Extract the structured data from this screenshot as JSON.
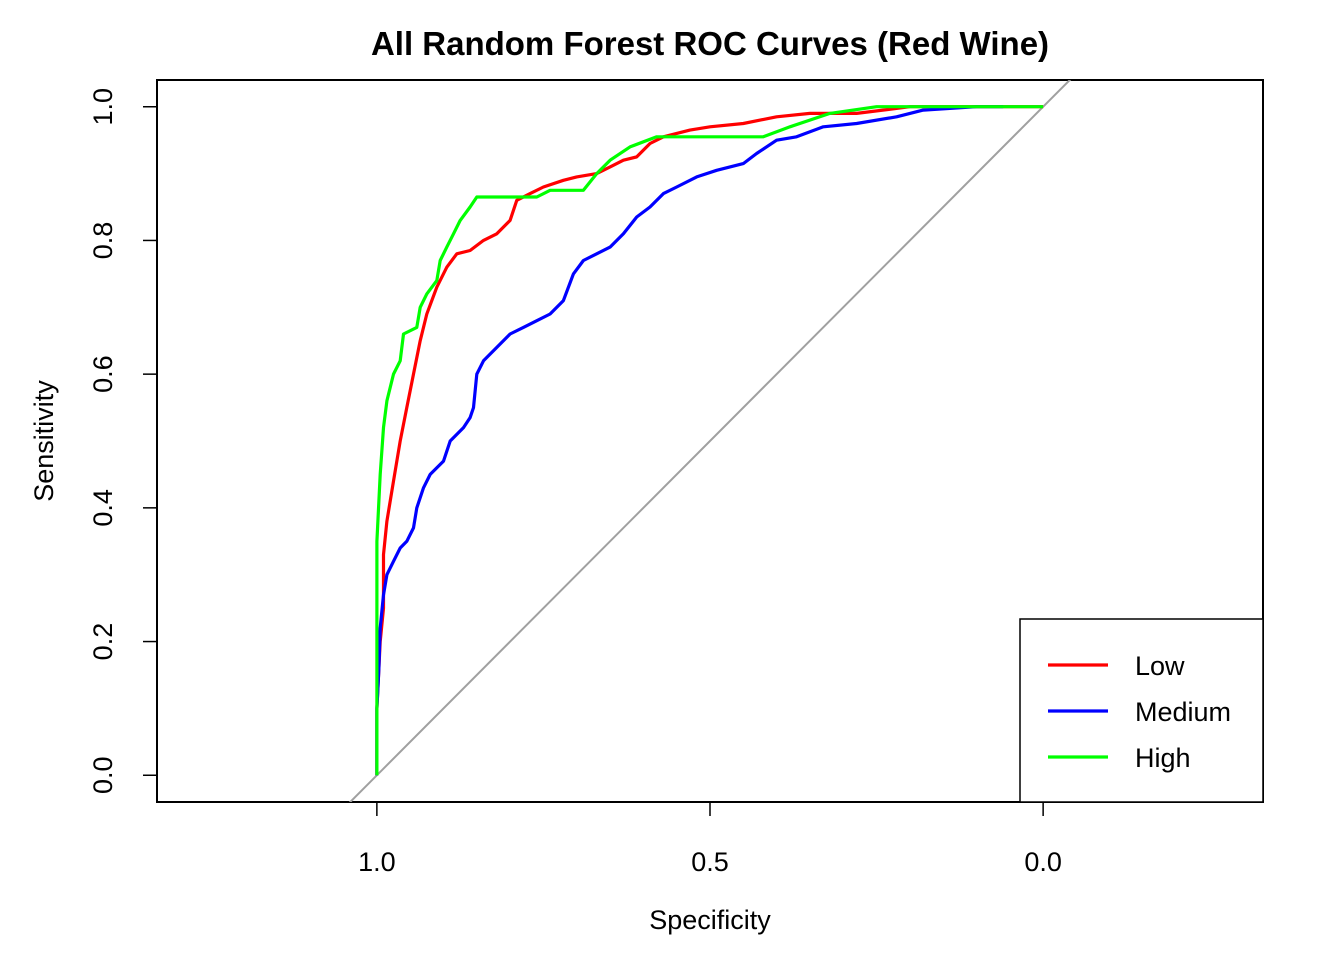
{
  "chart_data": {
    "type": "line",
    "title": "All Random Forest ROC Curves (Red Wine)",
    "xlabel": "Specificity",
    "ylabel": "Sensitivity",
    "x_reversed": true,
    "xlim": [
      1.33,
      -0.33
    ],
    "ylim": [
      -0.04,
      1.04
    ],
    "x_ticks": [
      1.0,
      0.5,
      0.0
    ],
    "x_tick_labels": [
      "1.0",
      "0.5",
      "0.0"
    ],
    "y_ticks": [
      0.0,
      0.2,
      0.4,
      0.6,
      0.8,
      1.0
    ],
    "y_tick_labels": [
      "0.0",
      "0.2",
      "0.4",
      "0.6",
      "0.8",
      "1.0"
    ],
    "grid": false,
    "legend_position": "bottom-right",
    "reference_line": {
      "color": "#a0a0a0",
      "from": [
        1.0,
        0.0
      ],
      "to": [
        0.0,
        1.0
      ]
    },
    "series": [
      {
        "name": "Low",
        "color": "#ff0000",
        "points": [
          [
            1.0,
            0.0
          ],
          [
            1.0,
            0.1
          ],
          [
            0.995,
            0.2
          ],
          [
            0.99,
            0.25
          ],
          [
            0.99,
            0.33
          ],
          [
            0.985,
            0.38
          ],
          [
            0.975,
            0.44
          ],
          [
            0.965,
            0.5
          ],
          [
            0.955,
            0.55
          ],
          [
            0.945,
            0.6
          ],
          [
            0.935,
            0.65
          ],
          [
            0.925,
            0.69
          ],
          [
            0.91,
            0.73
          ],
          [
            0.895,
            0.76
          ],
          [
            0.88,
            0.78
          ],
          [
            0.86,
            0.785
          ],
          [
            0.84,
            0.8
          ],
          [
            0.82,
            0.81
          ],
          [
            0.8,
            0.83
          ],
          [
            0.79,
            0.86
          ],
          [
            0.77,
            0.87
          ],
          [
            0.75,
            0.88
          ],
          [
            0.72,
            0.89
          ],
          [
            0.7,
            0.895
          ],
          [
            0.67,
            0.9
          ],
          [
            0.65,
            0.91
          ],
          [
            0.63,
            0.92
          ],
          [
            0.61,
            0.925
          ],
          [
            0.59,
            0.945
          ],
          [
            0.57,
            0.955
          ],
          [
            0.53,
            0.965
          ],
          [
            0.5,
            0.97
          ],
          [
            0.45,
            0.975
          ],
          [
            0.4,
            0.985
          ],
          [
            0.35,
            0.99
          ],
          [
            0.28,
            0.99
          ],
          [
            0.2,
            1.0
          ],
          [
            0.1,
            1.0
          ],
          [
            0.0,
            1.0
          ]
        ]
      },
      {
        "name": "Medium",
        "color": "#0000ff",
        "points": [
          [
            1.0,
            0.0
          ],
          [
            1.0,
            0.1
          ],
          [
            0.997,
            0.16
          ],
          [
            0.995,
            0.22
          ],
          [
            0.99,
            0.27
          ],
          [
            0.985,
            0.3
          ],
          [
            0.975,
            0.32
          ],
          [
            0.965,
            0.34
          ],
          [
            0.955,
            0.35
          ],
          [
            0.945,
            0.37
          ],
          [
            0.94,
            0.4
          ],
          [
            0.93,
            0.43
          ],
          [
            0.92,
            0.45
          ],
          [
            0.9,
            0.47
          ],
          [
            0.89,
            0.5
          ],
          [
            0.87,
            0.52
          ],
          [
            0.86,
            0.535
          ],
          [
            0.855,
            0.55
          ],
          [
            0.85,
            0.6
          ],
          [
            0.84,
            0.62
          ],
          [
            0.82,
            0.64
          ],
          [
            0.8,
            0.66
          ],
          [
            0.78,
            0.67
          ],
          [
            0.76,
            0.68
          ],
          [
            0.74,
            0.69
          ],
          [
            0.72,
            0.71
          ],
          [
            0.705,
            0.75
          ],
          [
            0.69,
            0.77
          ],
          [
            0.67,
            0.78
          ],
          [
            0.65,
            0.79
          ],
          [
            0.63,
            0.81
          ],
          [
            0.61,
            0.835
          ],
          [
            0.59,
            0.85
          ],
          [
            0.57,
            0.87
          ],
          [
            0.55,
            0.88
          ],
          [
            0.52,
            0.895
          ],
          [
            0.49,
            0.905
          ],
          [
            0.45,
            0.915
          ],
          [
            0.43,
            0.93
          ],
          [
            0.4,
            0.95
          ],
          [
            0.37,
            0.955
          ],
          [
            0.33,
            0.97
          ],
          [
            0.28,
            0.975
          ],
          [
            0.22,
            0.985
          ],
          [
            0.18,
            0.995
          ],
          [
            0.1,
            1.0
          ],
          [
            0.06,
            1.0
          ]
        ]
      },
      {
        "name": "High",
        "color": "#00ff00",
        "points": [
          [
            1.0,
            0.0
          ],
          [
            1.0,
            0.2
          ],
          [
            1.0,
            0.35
          ],
          [
            0.995,
            0.45
          ],
          [
            0.99,
            0.52
          ],
          [
            0.985,
            0.56
          ],
          [
            0.975,
            0.6
          ],
          [
            0.965,
            0.62
          ],
          [
            0.96,
            0.66
          ],
          [
            0.94,
            0.67
          ],
          [
            0.935,
            0.7
          ],
          [
            0.925,
            0.72
          ],
          [
            0.91,
            0.74
          ],
          [
            0.905,
            0.77
          ],
          [
            0.895,
            0.79
          ],
          [
            0.885,
            0.81
          ],
          [
            0.875,
            0.83
          ],
          [
            0.86,
            0.85
          ],
          [
            0.85,
            0.865
          ],
          [
            0.76,
            0.865
          ],
          [
            0.74,
            0.875
          ],
          [
            0.69,
            0.875
          ],
          [
            0.67,
            0.9
          ],
          [
            0.65,
            0.92
          ],
          [
            0.62,
            0.94
          ],
          [
            0.58,
            0.955
          ],
          [
            0.42,
            0.955
          ],
          [
            0.38,
            0.97
          ],
          [
            0.32,
            0.99
          ],
          [
            0.25,
            1.0
          ],
          [
            0.0,
            1.0
          ]
        ]
      }
    ]
  }
}
